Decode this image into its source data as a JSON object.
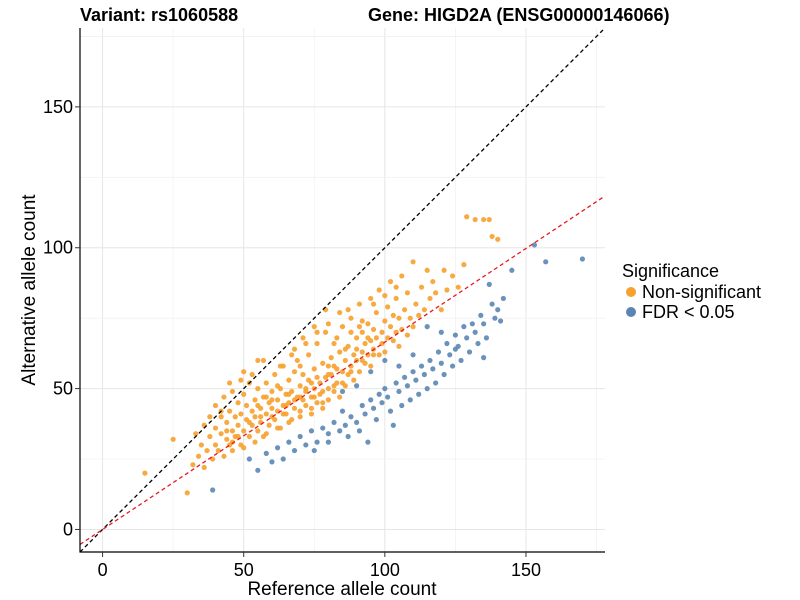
{
  "header": {
    "variant_title": "Variant: rs1060588",
    "gene_title": "Gene: HIGD2A (ENSG00000146066)"
  },
  "legend": {
    "title": "Significance",
    "items": [
      {
        "label": "Non-significant",
        "color": "#f7a12e"
      },
      {
        "label": "FDR < 0.05",
        "color": "#5b86b4"
      }
    ]
  },
  "chart_data": {
    "type": "scatter",
    "title": "Variant: rs1060588    Gene: HIGD2A (ENSG00000146066)",
    "xlabel": "Reference allele count",
    "ylabel": "Alternative allele count",
    "xlim": [
      -8,
      178
    ],
    "ylim": [
      -8,
      178
    ],
    "xticks": [
      0,
      50,
      100,
      150
    ],
    "yticks": [
      0,
      50,
      100,
      150
    ],
    "grid": true,
    "legend_position": "right",
    "reference_lines": [
      {
        "name": "identity (y = x)",
        "slope": 1.0,
        "intercept": 0,
        "color": "#000000",
        "style": "dashed"
      },
      {
        "name": "fitted ratio",
        "slope": 0.665,
        "intercept": 0,
        "color": "#e8191f",
        "style": "dashed"
      }
    ],
    "series": [
      {
        "name": "Non-significant",
        "color": "#f7a12e",
        "points": [
          [
            15,
            20
          ],
          [
            25,
            32
          ],
          [
            30,
            13
          ],
          [
            32,
            23
          ],
          [
            33,
            34
          ],
          [
            34,
            26
          ],
          [
            35,
            30
          ],
          [
            36,
            22
          ],
          [
            37,
            28
          ],
          [
            38,
            33
          ],
          [
            38,
            40
          ],
          [
            39,
            25
          ],
          [
            40,
            30
          ],
          [
            40,
            36
          ],
          [
            41,
            28
          ],
          [
            42,
            34
          ],
          [
            42,
            40
          ],
          [
            43,
            26
          ],
          [
            44,
            32
          ],
          [
            44,
            38
          ],
          [
            45,
            30
          ],
          [
            45,
            42
          ],
          [
            46,
            35
          ],
          [
            46,
            28
          ],
          [
            47,
            40
          ],
          [
            47,
            33
          ],
          [
            48,
            45
          ],
          [
            48,
            37
          ],
          [
            49,
            30
          ],
          [
            49,
            41
          ],
          [
            50,
            35
          ],
          [
            50,
            48
          ],
          [
            51,
            39
          ],
          [
            51,
            44
          ],
          [
            52,
            33
          ],
          [
            52,
            52
          ],
          [
            53,
            42
          ],
          [
            53,
            37
          ],
          [
            54,
            46
          ],
          [
            54,
            40
          ],
          [
            55,
            35
          ],
          [
            55,
            50
          ],
          [
            56,
            43
          ],
          [
            56,
            38
          ],
          [
            57,
            47
          ],
          [
            57,
            33
          ],
          [
            58,
            52
          ],
          [
            58,
            41
          ],
          [
            59,
            45
          ],
          [
            59,
            37
          ],
          [
            60,
            49
          ],
          [
            60,
            43
          ],
          [
            61,
            39
          ],
          [
            61,
            55
          ],
          [
            62,
            46
          ],
          [
            62,
            42
          ],
          [
            63,
            50
          ],
          [
            63,
            36
          ],
          [
            64,
            44
          ],
          [
            64,
            58
          ],
          [
            65,
            48
          ],
          [
            65,
            41
          ],
          [
            66,
            53
          ],
          [
            66,
            45
          ],
          [
            67,
            39
          ],
          [
            67,
            49
          ],
          [
            68,
            56
          ],
          [
            68,
            43
          ],
          [
            69,
            47
          ],
          [
            69,
            60
          ],
          [
            70,
            51
          ],
          [
            70,
            42
          ],
          [
            71,
            46
          ],
          [
            71,
            55
          ],
          [
            72,
            49
          ],
          [
            72,
            44
          ],
          [
            73,
            62
          ],
          [
            73,
            53
          ],
          [
            74,
            47
          ],
          [
            74,
            41
          ],
          [
            75,
            57
          ],
          [
            75,
            50
          ],
          [
            76,
            45
          ],
          [
            76,
            66
          ],
          [
            77,
            52
          ],
          [
            77,
            48
          ],
          [
            78,
            59
          ],
          [
            78,
            43
          ],
          [
            79,
            54
          ],
          [
            79,
            70
          ],
          [
            80,
            50
          ],
          [
            80,
            46
          ],
          [
            81,
            61
          ],
          [
            81,
            55
          ],
          [
            82,
            49
          ],
          [
            82,
            66
          ],
          [
            83,
            57
          ],
          [
            83,
            52
          ],
          [
            84,
            47
          ],
          [
            84,
            63
          ],
          [
            85,
            56
          ],
          [
            85,
            72
          ],
          [
            86,
            60
          ],
          [
            86,
            51
          ],
          [
            87,
            65
          ],
          [
            87,
            55
          ],
          [
            88,
            58
          ],
          [
            88,
            75
          ],
          [
            89,
            62
          ],
          [
            89,
            53
          ],
          [
            90,
            68
          ],
          [
            90,
            60
          ],
          [
            91,
            56
          ],
          [
            91,
            80
          ],
          [
            92,
            63
          ],
          [
            92,
            70
          ],
          [
            93,
            59
          ],
          [
            93,
            66
          ],
          [
            94,
            73
          ],
          [
            94,
            62
          ],
          [
            95,
            67
          ],
          [
            95,
            58
          ],
          [
            96,
            71
          ],
          [
            96,
            64
          ],
          [
            97,
            77
          ],
          [
            97,
            68
          ],
          [
            98,
            62
          ],
          [
            98,
            85
          ],
          [
            99,
            70
          ],
          [
            99,
            66
          ],
          [
            100,
            74
          ],
          [
            100,
            63
          ],
          [
            101,
            79
          ],
          [
            101,
            68
          ],
          [
            102,
            72
          ],
          [
            102,
            88
          ],
          [
            103,
            67
          ],
          [
            103,
            76
          ],
          [
            104,
            70
          ],
          [
            104,
            82
          ],
          [
            105,
            65
          ],
          [
            105,
            75
          ],
          [
            106,
            71
          ],
          [
            106,
            90
          ],
          [
            107,
            78
          ],
          [
            108,
            69
          ],
          [
            108,
            84
          ],
          [
            109,
            75
          ],
          [
            110,
            72
          ],
          [
            110,
            95
          ],
          [
            111,
            80
          ],
          [
            112,
            76
          ],
          [
            113,
            86
          ],
          [
            114,
            78
          ],
          [
            115,
            92
          ],
          [
            116,
            82
          ],
          [
            117,
            88
          ],
          [
            118,
            84
          ],
          [
            120,
            78
          ],
          [
            121,
            92
          ],
          [
            122,
            85
          ],
          [
            124,
            90
          ],
          [
            126,
            86
          ],
          [
            128,
            94
          ],
          [
            129,
            111
          ],
          [
            132,
            110
          ],
          [
            135,
            110
          ],
          [
            137,
            110
          ],
          [
            138,
            104
          ],
          [
            140,
            103
          ],
          [
            58,
            47
          ],
          [
            62,
            51
          ],
          [
            66,
            48
          ],
          [
            70,
            58
          ],
          [
            74,
            52
          ],
          [
            78,
            49
          ],
          [
            82,
            58
          ],
          [
            86,
            64
          ],
          [
            90,
            64
          ],
          [
            94,
            68
          ],
          [
            55,
            44
          ],
          [
            60,
            46
          ],
          [
            65,
            44
          ],
          [
            70,
            47
          ],
          [
            75,
            47
          ],
          [
            80,
            55
          ],
          [
            85,
            52
          ],
          [
            88,
            56
          ],
          [
            92,
            60
          ],
          [
            96,
            62
          ],
          [
            44,
            35
          ],
          [
            48,
            33
          ],
          [
            52,
            38
          ],
          [
            56,
            40
          ],
          [
            60,
            40
          ],
          [
            64,
            41
          ],
          [
            68,
            46
          ],
          [
            72,
            50
          ],
          [
            76,
            54
          ],
          [
            80,
            58
          ],
          [
            46,
            31
          ],
          [
            50,
            29
          ],
          [
            54,
            31
          ],
          [
            58,
            34
          ],
          [
            62,
            36
          ],
          [
            66,
            38
          ],
          [
            70,
            40
          ],
          [
            74,
            43
          ],
          [
            78,
            45
          ],
          [
            82,
            51
          ],
          [
            68,
            64
          ],
          [
            72,
            66
          ],
          [
            76,
            70
          ],
          [
            80,
            73
          ],
          [
            84,
            77
          ],
          [
            88,
            70
          ],
          [
            92,
            74
          ],
          [
            96,
            80
          ],
          [
            100,
            83
          ],
          [
            104,
            86
          ],
          [
            57,
            60
          ],
          [
            63,
            58
          ],
          [
            67,
            62
          ],
          [
            71,
            68
          ],
          [
            75,
            72
          ],
          [
            79,
            78
          ],
          [
            83,
            68
          ],
          [
            87,
            78
          ],
          [
            91,
            72
          ],
          [
            95,
            82
          ],
          [
            36,
            37
          ],
          [
            40,
            44
          ],
          [
            43,
            47
          ],
          [
            46,
            49
          ],
          [
            49,
            53
          ],
          [
            53,
            55
          ],
          [
            45,
            52
          ],
          [
            50,
            56
          ],
          [
            55,
            60
          ],
          [
            42,
            42
          ]
        ]
      },
      {
        "name": "FDR < 0.05",
        "color": "#5b86b4",
        "points": [
          [
            39,
            14
          ],
          [
            52,
            25
          ],
          [
            55,
            21
          ],
          [
            58,
            27
          ],
          [
            60,
            24
          ],
          [
            62,
            29
          ],
          [
            64,
            25
          ],
          [
            66,
            31
          ],
          [
            68,
            28
          ],
          [
            70,
            33
          ],
          [
            72,
            30
          ],
          [
            74,
            35
          ],
          [
            76,
            31
          ],
          [
            78,
            36
          ],
          [
            80,
            34
          ],
          [
            82,
            38
          ],
          [
            84,
            35
          ],
          [
            85,
            42
          ],
          [
            86,
            37
          ],
          [
            88,
            40
          ],
          [
            90,
            38
          ],
          [
            92,
            44
          ],
          [
            93,
            41
          ],
          [
            95,
            46
          ],
          [
            96,
            43
          ],
          [
            98,
            48
          ],
          [
            99,
            45
          ],
          [
            100,
            50
          ],
          [
            101,
            47
          ],
          [
            102,
            42
          ],
          [
            104,
            52
          ],
          [
            105,
            49
          ],
          [
            106,
            44
          ],
          [
            107,
            54
          ],
          [
            108,
            51
          ],
          [
            109,
            46
          ],
          [
            110,
            56
          ],
          [
            111,
            53
          ],
          [
            112,
            48
          ],
          [
            113,
            58
          ],
          [
            114,
            55
          ],
          [
            115,
            50
          ],
          [
            116,
            60
          ],
          [
            117,
            57
          ],
          [
            118,
            52
          ],
          [
            119,
            63
          ],
          [
            120,
            59
          ],
          [
            121,
            55
          ],
          [
            122,
            66
          ],
          [
            123,
            62
          ],
          [
            124,
            58
          ],
          [
            125,
            69
          ],
          [
            126,
            65
          ],
          [
            127,
            60
          ],
          [
            128,
            72
          ],
          [
            129,
            68
          ],
          [
            130,
            63
          ],
          [
            131,
            73
          ],
          [
            132,
            70
          ],
          [
            133,
            66
          ],
          [
            134,
            76
          ],
          [
            135,
            73
          ],
          [
            136,
            68
          ],
          [
            137,
            87
          ],
          [
            138,
            80
          ],
          [
            139,
            75
          ],
          [
            140,
            78
          ],
          [
            141,
            74
          ],
          [
            142,
            82
          ],
          [
            145,
            92
          ],
          [
            153,
            101
          ],
          [
            157,
            95
          ],
          [
            170,
            96
          ],
          [
            75,
            28
          ],
          [
            80,
            31
          ],
          [
            87,
            33
          ],
          [
            91,
            35
          ],
          [
            97,
            39
          ],
          [
            103,
            37
          ],
          [
            94,
            31
          ],
          [
            135,
            61
          ],
          [
            125,
            64
          ],
          [
            115,
            72
          ],
          [
            120,
            70
          ],
          [
            110,
            62
          ],
          [
            105,
            58
          ],
          [
            100,
            60
          ],
          [
            95,
            56
          ],
          [
            90,
            51
          ],
          [
            85,
            49
          ]
        ]
      }
    ]
  }
}
